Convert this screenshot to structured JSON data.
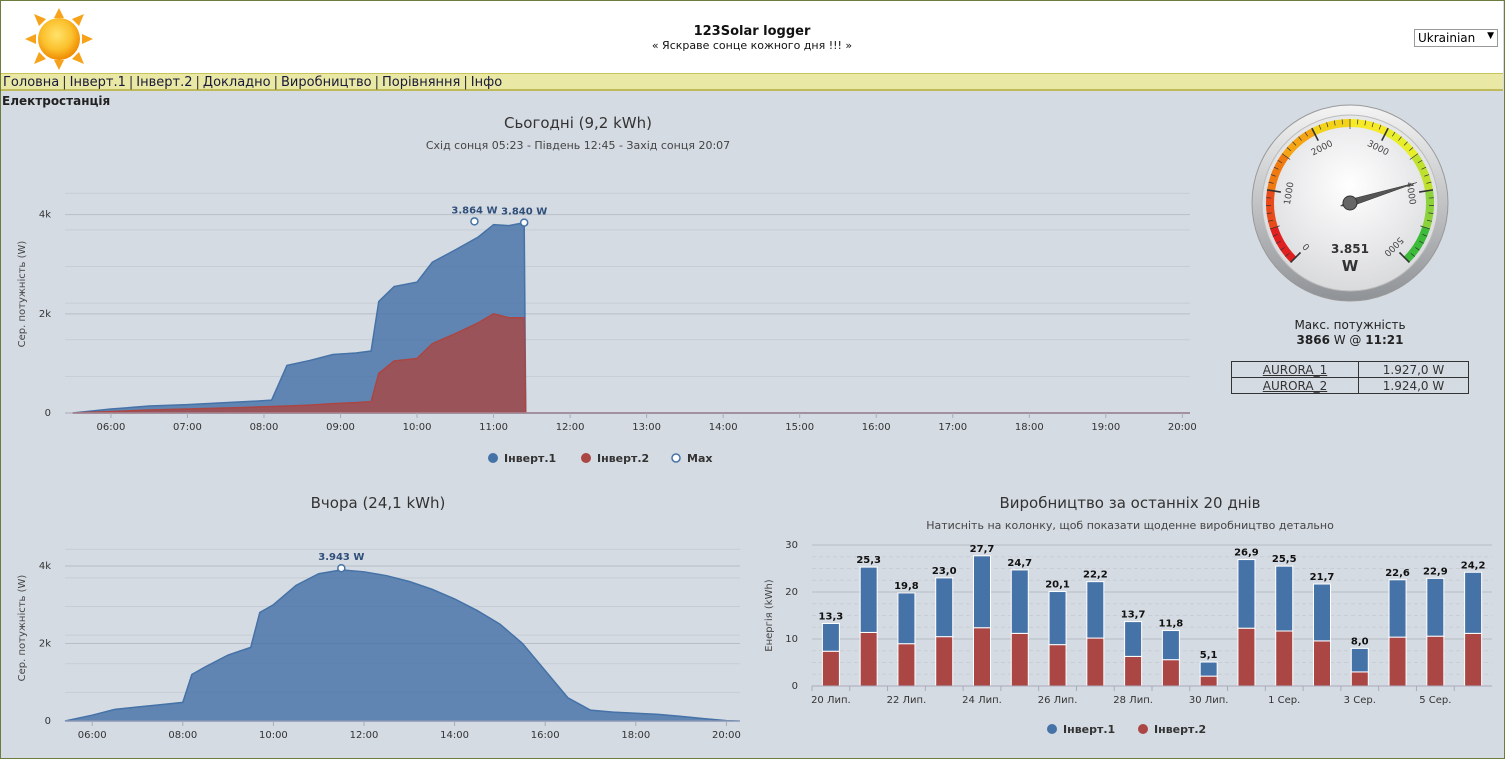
{
  "header": {
    "title": "123Solar logger",
    "subtitle": "« Яскраве сонце кожного дня !!! »",
    "language": "Ukrainian"
  },
  "nav": {
    "items": [
      "Головна",
      "Інверт.1",
      "Інверт.2",
      "Докладно",
      "Виробництво",
      "Порівняння",
      "Інфо"
    ]
  },
  "section_title": "Електростанція",
  "today_chart": {
    "title": "Сьогодні (9,2 kWh)",
    "subtitle": "Схід сонця 05:23 - Південь 12:45 - Захід сонця 20:07",
    "ylabel": "Сер. потужність (W)",
    "max_labels": [
      "3.864 W",
      "3.840 W"
    ],
    "legend": [
      "Інверт.1",
      "Інверт.2",
      "Max"
    ]
  },
  "yesterday_chart": {
    "title": "Вчора (24,1 kWh)",
    "ylabel": "Сер. потужність (W)",
    "max_label": "3.943 W"
  },
  "days_chart": {
    "title": "Виробництво за останніх 20 днів",
    "subtitle": "Натисніть на колонку, щоб показати щоденне виробництво детально",
    "ylabel": "Енергія (kWh)",
    "legend": [
      "Інверт.1",
      "Інверт.2"
    ]
  },
  "gauge": {
    "value": 3851,
    "value_label": "3.851",
    "unit": "W",
    "max": 5000,
    "ticks": [
      "0",
      "1000",
      "2000",
      "3000",
      "4000",
      "5000"
    ]
  },
  "max_power": {
    "label": "Макс. потужність",
    "value": "3866",
    "unit": "W @",
    "time": "11:21"
  },
  "inverters": [
    {
      "name": "AURORA_1",
      "value": "1.927,0 W"
    },
    {
      "name": "AURORA_2",
      "value": "1.924,0 W"
    }
  ],
  "colors": {
    "inv1": "#4572a7",
    "inv2": "#aa4643",
    "nav_bg": "#e9e8a5",
    "page_bg": "#d5dbe3"
  },
  "chart_data": [
    {
      "type": "area",
      "title": "Сьогодні (9,2 kWh)",
      "ylabel": "Сер. потужність (W)",
      "x_unit": "hour of day",
      "xlim": [
        5.4,
        20.1
      ],
      "ylim": [
        0,
        4800
      ],
      "xticks": [
        "06:00",
        "07:00",
        "08:00",
        "09:00",
        "10:00",
        "11:00",
        "12:00",
        "13:00",
        "14:00",
        "15:00",
        "16:00",
        "17:00",
        "18:00",
        "19:00",
        "20:00"
      ],
      "yticks": [
        "0",
        "2k",
        "4k"
      ],
      "ytick_values": [
        0,
        2000,
        4000
      ],
      "stacked": true,
      "series": [
        {
          "name": "Інверт.1",
          "x": [
            5.5,
            6.0,
            6.5,
            7.0,
            7.5,
            7.9,
            8.1,
            8.3,
            8.6,
            8.9,
            9.2,
            9.4,
            9.5,
            9.7,
            10.0,
            10.2,
            10.5,
            10.8,
            11.0,
            11.2,
            11.4,
            11.42,
            20.1
          ],
          "y": [
            0,
            50,
            80,
            90,
            110,
            120,
            130,
            820,
            900,
            990,
            1000,
            1020,
            1450,
            1500,
            1540,
            1640,
            1690,
            1730,
            1800,
            1860,
            1920,
            0,
            0
          ]
        },
        {
          "name": "Інверт.2",
          "x": [
            5.5,
            6.0,
            6.5,
            7.0,
            7.5,
            7.9,
            8.1,
            8.3,
            8.6,
            8.9,
            9.2,
            9.4,
            9.5,
            9.7,
            10.0,
            10.2,
            10.5,
            10.8,
            11.0,
            11.2,
            11.4,
            11.42,
            20.1
          ],
          "y": [
            0,
            30,
            60,
            80,
            100,
            120,
            130,
            140,
            160,
            190,
            210,
            230,
            800,
            1050,
            1100,
            1400,
            1600,
            1820,
            2000,
            1920,
            1920,
            0,
            0
          ]
        }
      ],
      "max_points": [
        {
          "x": 10.75,
          "y": 3864
        },
        {
          "x": 11.4,
          "y": 3840
        }
      ]
    },
    {
      "type": "area",
      "title": "Вчора (24,1 kWh)",
      "ylabel": "Сер. потужність (W)",
      "x_unit": "hour of day",
      "xlim": [
        5.4,
        20.3
      ],
      "ylim": [
        0,
        4800
      ],
      "xticks": [
        "06:00",
        "08:00",
        "10:00",
        "12:00",
        "14:00",
        "16:00",
        "18:00",
        "20:00"
      ],
      "yticks": [
        "0",
        "2k",
        "4k"
      ],
      "ytick_values": [
        0,
        2000,
        4000
      ],
      "series": [
        {
          "name": "Інверт.1",
          "x": [
            5.4,
            6.0,
            6.5,
            7.0,
            7.5,
            8.0,
            8.2,
            8.5,
            9.0,
            9.5,
            9.7,
            10.0,
            10.5,
            11.0,
            11.5,
            12.0,
            12.5,
            13.0,
            13.5,
            14.0,
            14.5,
            15.0,
            15.5,
            16.0,
            16.5,
            17.0,
            17.5,
            18.0,
            18.5,
            19.0,
            19.5,
            20.0,
            20.3
          ],
          "y": [
            0,
            150,
            300,
            360,
            420,
            480,
            1200,
            1400,
            1700,
            1900,
            2800,
            3000,
            3500,
            3800,
            3900,
            3850,
            3750,
            3600,
            3400,
            3150,
            2850,
            2500,
            2000,
            1300,
            600,
            280,
            230,
            200,
            170,
            120,
            60,
            10,
            0
          ]
        }
      ],
      "max_points": [
        {
          "x": 11.5,
          "y": 3943
        }
      ]
    },
    {
      "type": "bar",
      "title": "Виробництво за останніх 20 днів",
      "ylabel": "Енергія (kWh)",
      "ylim": [
        0,
        30
      ],
      "yticks": [
        0,
        10,
        20,
        30
      ],
      "categories": [
        "20 Лип.",
        "21 Лип.",
        "22 Лип.",
        "23 Лип.",
        "24 Лип.",
        "25 Лип.",
        "26 Лип.",
        "27 Лип.",
        "28 Лип.",
        "29 Лип.",
        "30 Лип.",
        "31 Лип.",
        "1 Сер.",
        "2 Сер.",
        "3 Сер.",
        "4 Сер.",
        "5 Сер.",
        "6 Сер."
      ],
      "xtick_labels": [
        "20 Лип.",
        "",
        "22 Лип.",
        "",
        "24 Лип.",
        "",
        "26 Лип.",
        "",
        "28 Лип.",
        "",
        "30 Лип.",
        "",
        "1 Сер.",
        "",
        "3 Сер.",
        "",
        "5 Сер.",
        ""
      ],
      "totals": [
        "13,3",
        "25,3",
        "19,8",
        "23,0",
        "27,7",
        "24,7",
        "20,1",
        "22,2",
        "13,7",
        "11,8",
        "5,1",
        "26,9",
        "25,5",
        "21,7",
        "8,0",
        "22,6",
        "22,9",
        "24,2"
      ],
      "stacked": true,
      "series": [
        {
          "name": "Інверт.1",
          "values": [
            5.9,
            13.9,
            10.8,
            12.5,
            15.3,
            13.5,
            11.3,
            12.0,
            7.4,
            6.2,
            3.0,
            14.6,
            13.8,
            12.1,
            5.0,
            12.2,
            12.3,
            13.0
          ]
        },
        {
          "name": "Інверт.2",
          "values": [
            7.4,
            11.4,
            9.0,
            10.5,
            12.4,
            11.2,
            8.8,
            10.2,
            6.3,
            5.6,
            2.1,
            12.3,
            11.7,
            9.6,
            3.0,
            10.4,
            10.6,
            11.2
          ]
        }
      ]
    }
  ]
}
